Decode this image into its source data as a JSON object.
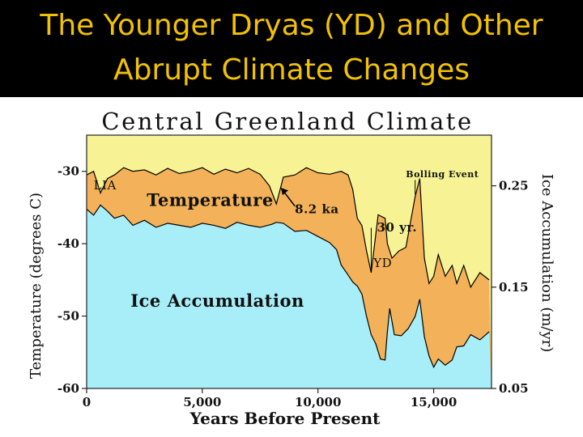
{
  "slide": {
    "title_line1": "The Younger Dryas (YD)  and Other",
    "title_line2": "Abrupt Climate Changes",
    "title_color": "#f2c200",
    "header_bg": "#000000"
  },
  "chart_data": {
    "type": "area",
    "title": "Central Greenland Climate",
    "xlabel": "Years Before Present",
    "ylabel": "Temperature (degrees C)",
    "y2label": "Ice Accumulation (m/yr)",
    "xlim": [
      0,
      17500
    ],
    "ylim": [
      -60,
      -25
    ],
    "y2lim": [
      0.05,
      0.3
    ],
    "x_ticks": [
      0,
      5000,
      10000,
      15000
    ],
    "x_tick_labels": [
      "0",
      "5,000",
      "10,000",
      "15,000"
    ],
    "y_ticks": [
      -30,
      -40,
      -50,
      -60
    ],
    "y_tick_labels": [
      "-30",
      "-40",
      "-50",
      "-60"
    ],
    "y2_ticks": [
      0.25,
      0.15,
      0.05
    ],
    "y2_tick_labels": [
      "0.25",
      "0.15",
      "0.05"
    ],
    "colors": {
      "background": "#f7f394",
      "temperature_band": "#f3b25a",
      "ice_accumulation": "#a8eef8",
      "outline": "#000000"
    },
    "series": [
      {
        "name": "Temperature",
        "x": [
          0,
          300,
          600,
          900,
          1200,
          1600,
          2000,
          2500,
          3000,
          3500,
          4000,
          4500,
          5000,
          5500,
          6000,
          6500,
          7000,
          7500,
          7900,
          8200,
          8500,
          9000,
          9500,
          10000,
          10500,
          11000,
          11300,
          11500,
          11700,
          11900,
          12100,
          12300,
          12600,
          12900,
          13000,
          13200,
          13500,
          13800,
          14000,
          14200,
          14400,
          14600,
          14800,
          15000,
          15200,
          15500,
          15800,
          16000,
          16300,
          16600,
          17000,
          17400
        ],
        "values": [
          -30.5,
          -30,
          -33,
          -31,
          -30.5,
          -29.5,
          -30,
          -29.8,
          -30.5,
          -29.6,
          -30.3,
          -30,
          -29.5,
          -30.4,
          -29.7,
          -30.2,
          -29.6,
          -30.4,
          -32,
          -34.5,
          -30.8,
          -30.5,
          -29.5,
          -30.2,
          -30.4,
          -30,
          -30.5,
          -32.5,
          -36.5,
          -37.5,
          -41,
          -44,
          -36,
          -36.5,
          -40,
          -42,
          -41,
          -40.5,
          -37,
          -33.5,
          -31,
          -42,
          -45.5,
          -44.5,
          -41.5,
          -44.5,
          -43,
          -45.5,
          -43,
          -46,
          -44,
          -45
        ]
      },
      {
        "name": "Ice Accumulation",
        "x": [
          0,
          300,
          600,
          900,
          1200,
          1600,
          2000,
          2500,
          3000,
          3500,
          4000,
          4500,
          5000,
          5500,
          6000,
          6500,
          7000,
          7500,
          8000,
          8200,
          8500,
          9000,
          9500,
          10000,
          10500,
          10800,
          11000,
          11300,
          11500,
          11700,
          11900,
          12100,
          12300,
          12500,
          12700,
          12900,
          13000,
          13100,
          13300,
          13600,
          13900,
          14200,
          14400,
          14600,
          14800,
          15000,
          15200,
          15500,
          15800,
          16000,
          16300,
          16600,
          17000,
          17400
        ],
        "values": [
          0.227,
          0.221,
          0.231,
          0.225,
          0.218,
          0.221,
          0.211,
          0.216,
          0.209,
          0.213,
          0.211,
          0.209,
          0.213,
          0.211,
          0.208,
          0.214,
          0.211,
          0.209,
          0.212,
          0.214,
          0.213,
          0.205,
          0.206,
          0.2,
          0.194,
          0.187,
          0.172,
          0.162,
          0.155,
          0.151,
          0.143,
          0.121,
          0.103,
          0.094,
          0.079,
          0.078,
          0.106,
          0.129,
          0.103,
          0.102,
          0.109,
          0.121,
          0.138,
          0.101,
          0.082,
          0.071,
          0.079,
          0.073,
          0.078,
          0.091,
          0.092,
          0.103,
          0.098,
          0.106
        ]
      }
    ],
    "annotations": [
      {
        "label": "LIA",
        "x": 300,
        "y": -32.5
      },
      {
        "label": "Temperature",
        "x": 2600,
        "y": -34.8
      },
      {
        "label": "8.2 ka",
        "x": 9000,
        "y": -35.8
      },
      {
        "label": "Bolling Event",
        "x": 13800,
        "y": -30.8
      },
      {
        "label": "30 yr.",
        "x": 12550,
        "y": -38.3
      },
      {
        "label": "YD",
        "x": 12400,
        "y": -43.2
      },
      {
        "label": "Ice Accumulation",
        "x": 1900,
        "y": -48.7
      }
    ]
  }
}
